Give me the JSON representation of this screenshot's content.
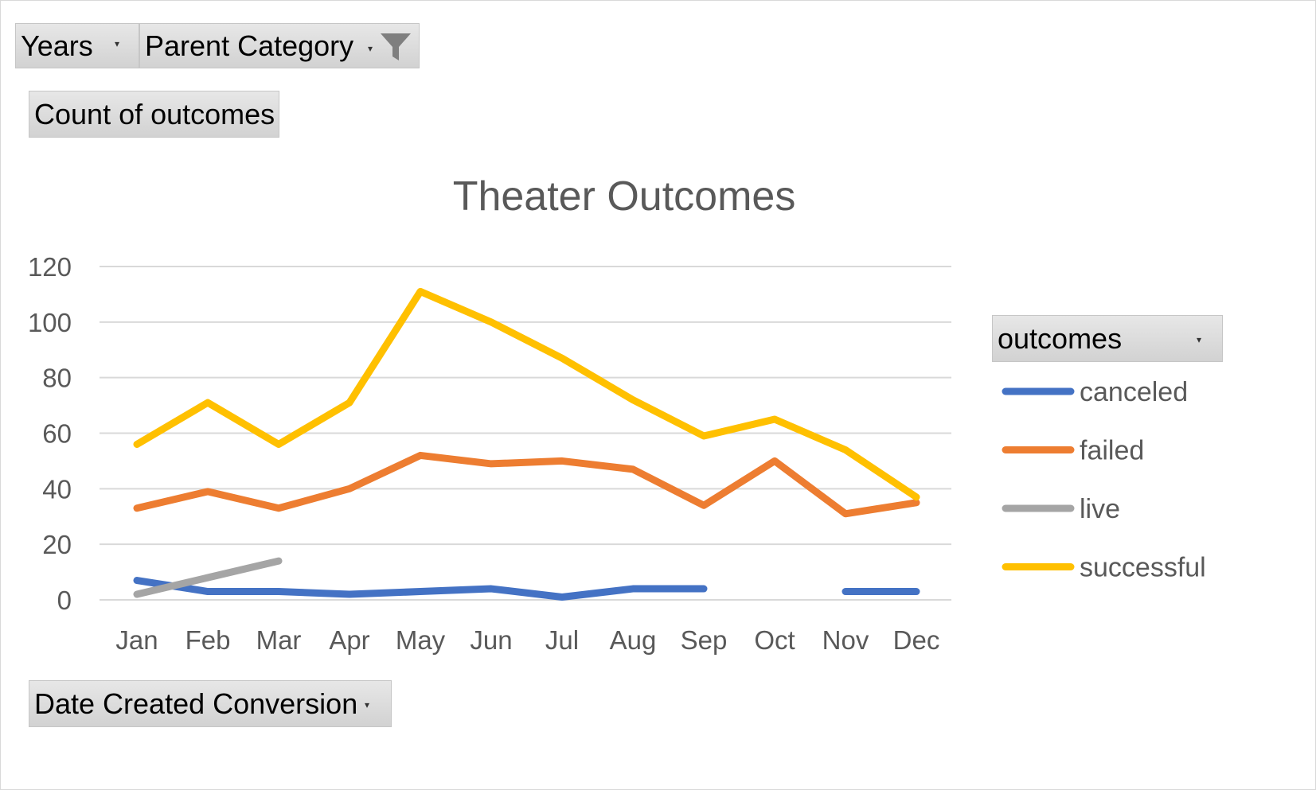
{
  "filters": {
    "years_label": "Years",
    "parent_category_label": "Parent Category",
    "values_label": "Count of outcomes",
    "axis_field_label": "Date Created Conversion",
    "legend_field_label": "outcomes"
  },
  "colors": {
    "canceled": "#4472C4",
    "failed": "#ED7D31",
    "live": "#A5A5A5",
    "successful": "#FFC000",
    "grid": "#d9d9d9",
    "axis_text": "#595959"
  },
  "chart_data": {
    "type": "line",
    "title": "Theater Outcomes",
    "categories": [
      "Jan",
      "Feb",
      "Mar",
      "Apr",
      "May",
      "Jun",
      "Jul",
      "Aug",
      "Sep",
      "Oct",
      "Nov",
      "Dec"
    ],
    "ylim": [
      0,
      120
    ],
    "yticks": [
      0,
      20,
      40,
      60,
      80,
      100,
      120
    ],
    "grid": true,
    "legend": "right",
    "series": [
      {
        "name": "canceled",
        "values": [
          7,
          3,
          3,
          2,
          3,
          4,
          1,
          4,
          4,
          null,
          3,
          3
        ]
      },
      {
        "name": "failed",
        "values": [
          33,
          39,
          33,
          40,
          52,
          49,
          50,
          47,
          34,
          50,
          31,
          35
        ]
      },
      {
        "name": "live",
        "values": [
          2,
          8,
          14,
          null,
          null,
          null,
          null,
          null,
          null,
          null,
          null,
          null
        ]
      },
      {
        "name": "successful",
        "values": [
          56,
          71,
          56,
          71,
          111,
          100,
          87,
          72,
          59,
          65,
          54,
          37
        ]
      }
    ]
  }
}
